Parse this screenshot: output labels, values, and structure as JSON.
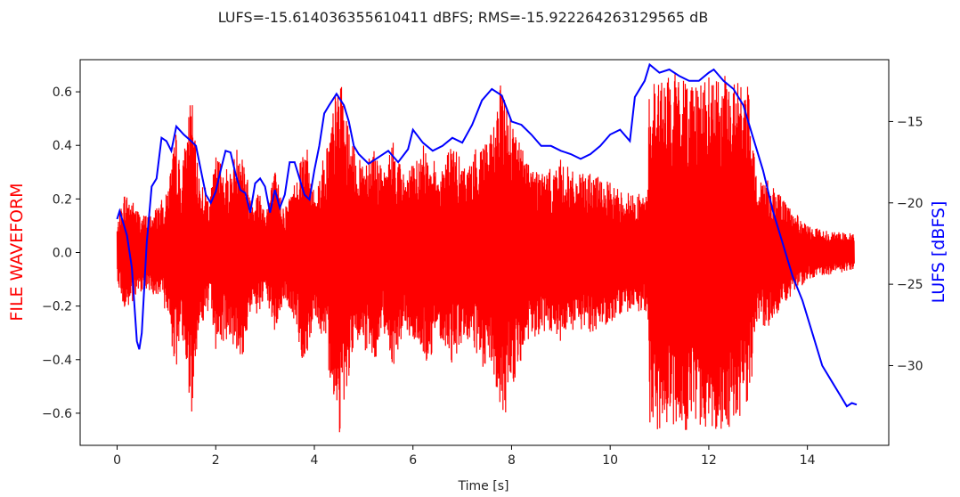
{
  "chart_data": {
    "type": "line",
    "title": "LUFS=-15.614036355610411 dBFS; RMS=-15.922264263129565 dB",
    "xlabel": "Time [s]",
    "ylabel_left": "FILE WAVEFORM",
    "ylabel_right": "LUFS [dBFS]",
    "xlim": [
      -0.75,
      15.65
    ],
    "ylim_left": [
      -0.72,
      0.72
    ],
    "ylim_right": [
      -34.9,
      -11.2
    ],
    "x_ticks": [
      "0",
      "2",
      "4",
      "6",
      "8",
      "10",
      "12",
      "14"
    ],
    "left_ticks": [
      "0.6",
      "0.4",
      "0.2",
      "0.0",
      "−0.2",
      "−0.4",
      "−0.6"
    ],
    "right_ticks": [
      "−15",
      "−20",
      "−25",
      "−30"
    ],
    "grid": false,
    "series": [
      {
        "color": "#ff0000",
        "style": "waveform",
        "axis": "left",
        "envelope": [
          [
            0.0,
            0.1
          ],
          [
            0.15,
            0.23
          ],
          [
            0.3,
            0.2
          ],
          [
            0.5,
            0.14
          ],
          [
            0.7,
            0.15
          ],
          [
            1.0,
            0.22
          ],
          [
            1.2,
            0.46
          ],
          [
            1.3,
            0.28
          ],
          [
            1.5,
            0.62
          ],
          [
            1.6,
            0.37
          ],
          [
            1.7,
            0.27
          ],
          [
            1.9,
            0.22
          ],
          [
            2.0,
            0.37
          ],
          [
            2.3,
            0.31
          ],
          [
            2.5,
            0.45
          ],
          [
            2.7,
            0.22
          ],
          [
            2.9,
            0.24
          ],
          [
            3.0,
            0.16
          ],
          [
            3.2,
            0.31
          ],
          [
            3.4,
            0.17
          ],
          [
            3.6,
            0.27
          ],
          [
            3.8,
            0.45
          ],
          [
            4.0,
            0.22
          ],
          [
            4.3,
            0.45
          ],
          [
            4.5,
            0.68
          ],
          [
            4.7,
            0.46
          ],
          [
            4.9,
            0.34
          ],
          [
            5.2,
            0.42
          ],
          [
            5.4,
            0.29
          ],
          [
            5.6,
            0.43
          ],
          [
            5.8,
            0.3
          ],
          [
            6.0,
            0.33
          ],
          [
            6.3,
            0.43
          ],
          [
            6.5,
            0.3
          ],
          [
            6.8,
            0.42
          ],
          [
            7.0,
            0.33
          ],
          [
            7.2,
            0.35
          ],
          [
            7.4,
            0.45
          ],
          [
            7.6,
            0.44
          ],
          [
            7.8,
            0.65
          ],
          [
            8.0,
            0.52
          ],
          [
            8.2,
            0.4
          ],
          [
            8.4,
            0.34
          ],
          [
            8.7,
            0.3
          ],
          [
            9.0,
            0.35
          ],
          [
            9.3,
            0.29
          ],
          [
            9.6,
            0.3
          ],
          [
            9.9,
            0.27
          ],
          [
            10.2,
            0.24
          ],
          [
            10.5,
            0.22
          ],
          [
            10.75,
            0.22
          ],
          [
            10.8,
            0.66
          ],
          [
            11.5,
            0.67
          ],
          [
            12.0,
            0.66
          ],
          [
            12.5,
            0.66
          ],
          [
            12.8,
            0.62
          ],
          [
            12.95,
            0.3
          ],
          [
            13.2,
            0.28
          ],
          [
            13.5,
            0.2
          ],
          [
            14.0,
            0.1
          ],
          [
            14.5,
            0.08
          ],
          [
            14.95,
            0.07
          ]
        ]
      },
      {
        "color": "#0000ff",
        "style": "line",
        "axis": "right",
        "points": [
          [
            0.0,
            -21.0
          ],
          [
            0.05,
            -20.5
          ],
          [
            0.1,
            -21.0
          ],
          [
            0.2,
            -22.0
          ],
          [
            0.3,
            -24.0
          ],
          [
            0.4,
            -28.5
          ],
          [
            0.45,
            -29.0
          ],
          [
            0.5,
            -28.0
          ],
          [
            0.6,
            -22.5
          ],
          [
            0.7,
            -19.0
          ],
          [
            0.8,
            -18.5
          ],
          [
            0.9,
            -16.0
          ],
          [
            1.0,
            -16.2
          ],
          [
            1.1,
            -16.8
          ],
          [
            1.2,
            -15.3
          ],
          [
            1.35,
            -15.8
          ],
          [
            1.5,
            -16.2
          ],
          [
            1.6,
            -16.5
          ],
          [
            1.7,
            -18.0
          ],
          [
            1.8,
            -19.5
          ],
          [
            1.9,
            -20.0
          ],
          [
            2.0,
            -19.3
          ],
          [
            2.1,
            -18.0
          ],
          [
            2.2,
            -16.8
          ],
          [
            2.3,
            -16.9
          ],
          [
            2.4,
            -18.2
          ],
          [
            2.5,
            -19.2
          ],
          [
            2.6,
            -19.4
          ],
          [
            2.7,
            -20.6
          ],
          [
            2.8,
            -18.8
          ],
          [
            2.9,
            -18.5
          ],
          [
            3.0,
            -19.0
          ],
          [
            3.1,
            -20.6
          ],
          [
            3.2,
            -19.2
          ],
          [
            3.3,
            -20.3
          ],
          [
            3.4,
            -19.5
          ],
          [
            3.5,
            -17.5
          ],
          [
            3.6,
            -17.5
          ],
          [
            3.8,
            -19.5
          ],
          [
            3.9,
            -19.8
          ],
          [
            4.0,
            -18.0
          ],
          [
            4.1,
            -16.5
          ],
          [
            4.2,
            -14.5
          ],
          [
            4.3,
            -14.0
          ],
          [
            4.45,
            -13.3
          ],
          [
            4.6,
            -14.0
          ],
          [
            4.7,
            -15.0
          ],
          [
            4.8,
            -16.5
          ],
          [
            4.9,
            -17.0
          ],
          [
            5.1,
            -17.6
          ],
          [
            5.3,
            -17.2
          ],
          [
            5.5,
            -16.8
          ],
          [
            5.7,
            -17.5
          ],
          [
            5.9,
            -16.7
          ],
          [
            6.0,
            -15.5
          ],
          [
            6.2,
            -16.3
          ],
          [
            6.4,
            -16.8
          ],
          [
            6.6,
            -16.5
          ],
          [
            6.8,
            -16.0
          ],
          [
            7.0,
            -16.3
          ],
          [
            7.2,
            -15.2
          ],
          [
            7.4,
            -13.7
          ],
          [
            7.6,
            -13.0
          ],
          [
            7.8,
            -13.4
          ],
          [
            8.0,
            -15.0
          ],
          [
            8.2,
            -15.2
          ],
          [
            8.4,
            -15.8
          ],
          [
            8.6,
            -16.5
          ],
          [
            8.8,
            -16.5
          ],
          [
            9.0,
            -16.8
          ],
          [
            9.2,
            -17.0
          ],
          [
            9.4,
            -17.3
          ],
          [
            9.6,
            -17.0
          ],
          [
            9.8,
            -16.5
          ],
          [
            10.0,
            -15.8
          ],
          [
            10.2,
            -15.5
          ],
          [
            10.4,
            -16.2
          ],
          [
            10.5,
            -13.5
          ],
          [
            10.7,
            -12.5
          ],
          [
            10.8,
            -11.5
          ],
          [
            11.0,
            -12.0
          ],
          [
            11.2,
            -11.8
          ],
          [
            11.4,
            -12.2
          ],
          [
            11.6,
            -12.5
          ],
          [
            11.8,
            -12.5
          ],
          [
            12.0,
            -12.0
          ],
          [
            12.1,
            -11.8
          ],
          [
            12.3,
            -12.5
          ],
          [
            12.5,
            -13.0
          ],
          [
            12.7,
            -14.0
          ],
          [
            12.9,
            -16.0
          ],
          [
            13.1,
            -18.0
          ],
          [
            13.3,
            -20.5
          ],
          [
            13.5,
            -22.5
          ],
          [
            13.7,
            -24.5
          ],
          [
            13.9,
            -26.0
          ],
          [
            14.1,
            -28.0
          ],
          [
            14.3,
            -30.0
          ],
          [
            14.5,
            -31.0
          ],
          [
            14.7,
            -32.0
          ],
          [
            14.8,
            -32.5
          ],
          [
            14.9,
            -32.3
          ],
          [
            15.0,
            -32.4
          ]
        ]
      }
    ]
  }
}
